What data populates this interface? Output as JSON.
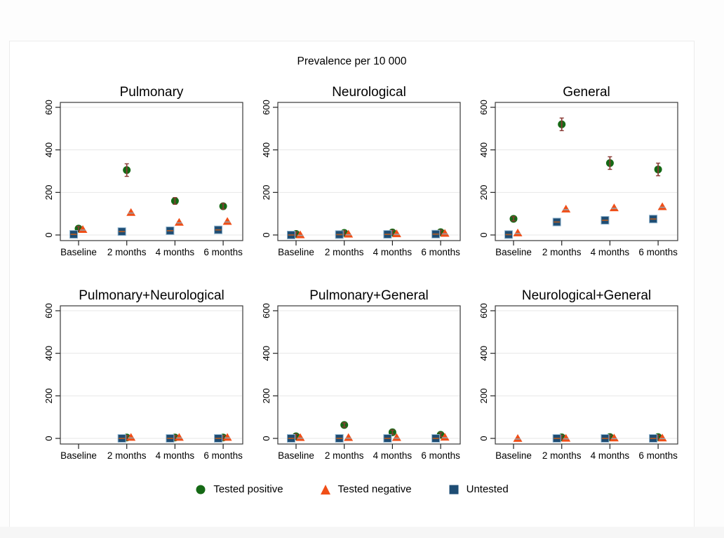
{
  "chart_data": {
    "type": "scatter",
    "title": "Prevalence per 10 000",
    "categories": [
      "Baseline",
      "2 months",
      "4 months",
      "6 months"
    ],
    "ylim": [
      0,
      600
    ],
    "yticks": [
      0,
      200,
      400,
      600
    ],
    "ytick_labels": [
      "0",
      "200",
      "400",
      "600"
    ],
    "grid": true,
    "legend_position": "bottom",
    "colors": {
      "positive": "#156915",
      "negative": "#f04e17",
      "untested": "#1e4d74",
      "untested_border": "#8fb3cd",
      "ci_positive": "#8a3a35",
      "ci_negative": "#9aa0a6",
      "ci_untested": "#a85b28",
      "gridline": "#e7e7e7",
      "box": "#3a3a3a"
    },
    "series_names": [
      "Tested positive",
      "Tested negative",
      "Untested"
    ],
    "panels": [
      {
        "title": "Pulmonary",
        "series": {
          "positive": [
            30,
            305,
            160,
            135
          ],
          "negative": [
            28,
            108,
            62,
            66
          ],
          "untested": [
            3,
            16,
            20,
            24
          ]
        }
      },
      {
        "title": "Neurological",
        "series": {
          "positive": [
            5,
            10,
            12,
            13
          ],
          "negative": [
            3,
            6,
            8,
            10
          ],
          "untested": [
            0,
            2,
            3,
            4
          ]
        }
      },
      {
        "title": "General",
        "series": {
          "positive": [
            76,
            520,
            338,
            308
          ],
          "negative": [
            12,
            124,
            130,
            135
          ],
          "untested": [
            2,
            61,
            69,
            75
          ]
        }
      },
      {
        "title": "Pulmonary+Neurological",
        "series": {
          "positive": [
            null,
            4,
            4,
            4
          ],
          "negative": [
            null,
            7,
            7,
            7
          ],
          "untested": [
            null,
            0,
            0,
            0
          ]
        }
      },
      {
        "title": "Pulmonary+General",
        "series": {
          "positive": [
            10,
            63,
            29,
            17
          ],
          "negative": [
            6,
            6,
            6,
            8
          ],
          "untested": [
            0,
            0,
            0,
            0
          ]
        }
      },
      {
        "title": "Neurological+General",
        "series": {
          "positive": [
            null,
            5,
            6,
            6
          ],
          "negative": [
            2,
            3,
            4,
            4
          ],
          "untested": [
            null,
            0,
            0,
            0
          ]
        }
      }
    ],
    "legend": [
      {
        "label": "Tested positive",
        "marker": "circle-icon",
        "color": "#156915"
      },
      {
        "label": "Tested negative",
        "marker": "triangle-icon",
        "color": "#f04e17"
      },
      {
        "label": "Untested",
        "marker": "square-icon",
        "color": "#1e4d74"
      }
    ]
  }
}
